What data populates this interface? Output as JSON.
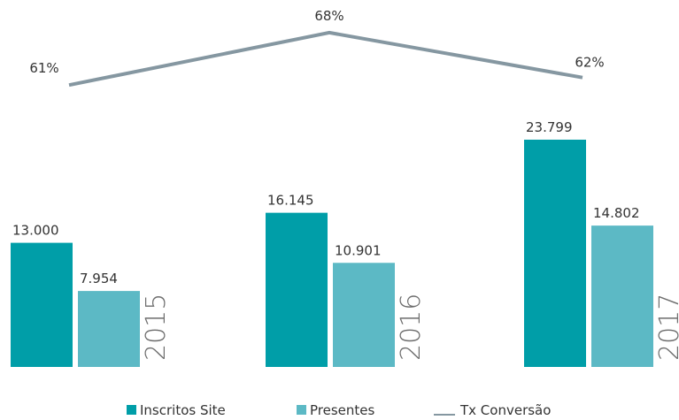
{
  "chart_data": {
    "type": "bar",
    "categories": [
      "2015",
      "2016",
      "2017"
    ],
    "series": [
      {
        "name": "Inscritos Site",
        "color": "#009ea8",
        "values": [
          13000,
          16145,
          23799
        ],
        "value_labels": [
          "13.000",
          "16.145",
          "23.799"
        ]
      },
      {
        "name": "Presentes",
        "color": "#5cb9c5",
        "values": [
          7954,
          10901,
          14802
        ],
        "value_labels": [
          "7.954",
          "10.901",
          "14.802"
        ]
      },
      {
        "name": "Tx Conversão",
        "type": "line",
        "axis": "y2",
        "color": "#8597a1",
        "values": [
          61,
          68,
          62
        ],
        "value_labels": [
          "61%",
          "68%",
          "62%"
        ]
      }
    ],
    "ylim": [
      0,
      30000
    ],
    "y2lim": [
      57,
      70
    ],
    "legend": "bottom"
  }
}
